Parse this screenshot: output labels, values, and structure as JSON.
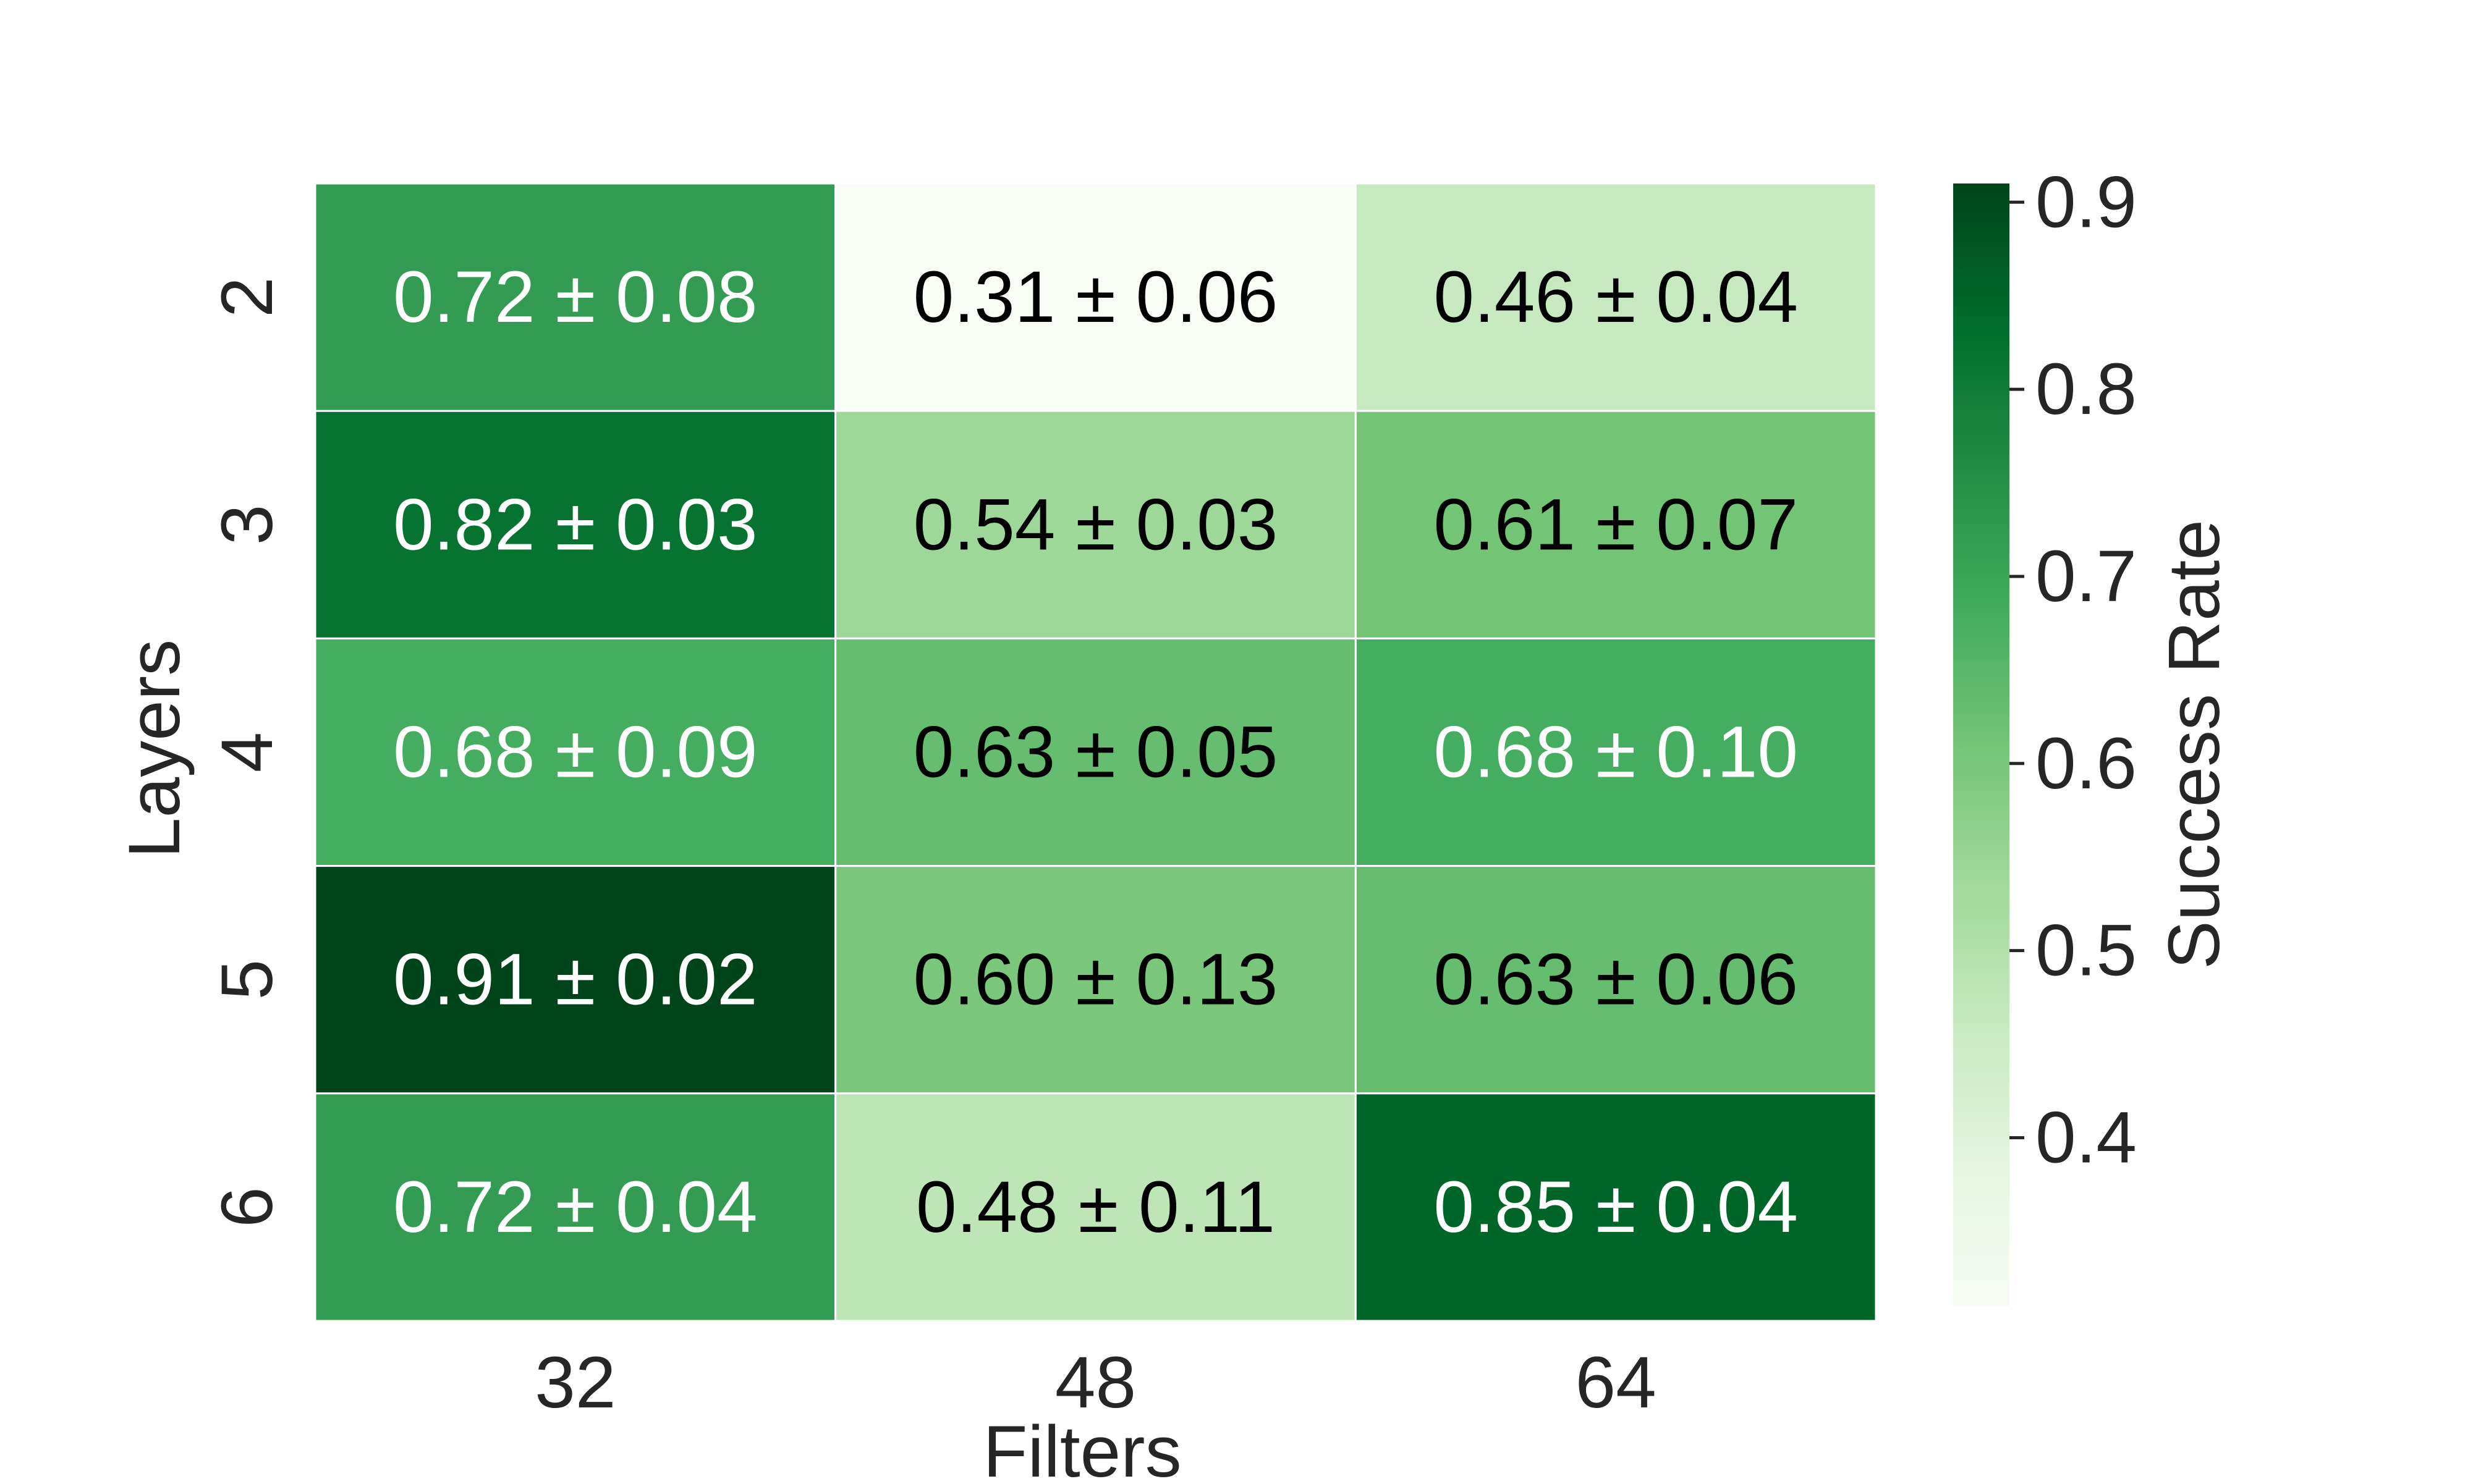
{
  "chart_data": {
    "type": "heatmap",
    "xlabel": "Filters",
    "ylabel": "Layers",
    "x_categories": [
      "32",
      "48",
      "64"
    ],
    "y_categories": [
      "2",
      "3",
      "4",
      "5",
      "6"
    ],
    "values": [
      [
        0.72,
        0.31,
        0.46
      ],
      [
        0.82,
        0.54,
        0.61
      ],
      [
        0.68,
        0.63,
        0.68
      ],
      [
        0.91,
        0.6,
        0.63
      ],
      [
        0.72,
        0.48,
        0.85
      ]
    ],
    "errors": [
      [
        0.08,
        0.06,
        0.04
      ],
      [
        0.03,
        0.03,
        0.07
      ],
      [
        0.09,
        0.05,
        0.1
      ],
      [
        0.02,
        0.13,
        0.06
      ],
      [
        0.04,
        0.11,
        0.04
      ]
    ],
    "cell_labels": [
      [
        "0.72 ± 0.08",
        "0.31 ± 0.06",
        "0.46 ± 0.04"
      ],
      [
        "0.82 ± 0.03",
        "0.54 ± 0.03",
        "0.61 ± 0.07"
      ],
      [
        "0.68 ± 0.09",
        "0.63 ± 0.05",
        "0.68 ± 0.10"
      ],
      [
        "0.91 ± 0.02",
        "0.60 ± 0.13",
        "0.63 ± 0.06"
      ],
      [
        "0.72 ± 0.04",
        "0.48 ± 0.11",
        "0.85 ± 0.04"
      ]
    ],
    "colorbar": {
      "label": "Success Rate",
      "range": [
        0.31,
        0.91
      ],
      "ticks": [
        "0.4",
        "0.5",
        "0.6",
        "0.7",
        "0.8",
        "0.9"
      ],
      "colormap": "Greens"
    },
    "colors": {
      "text_dark": "#000000",
      "text_light": "#ffffff",
      "axis_text": "#262626",
      "grid_line": "#ffffff"
    }
  }
}
